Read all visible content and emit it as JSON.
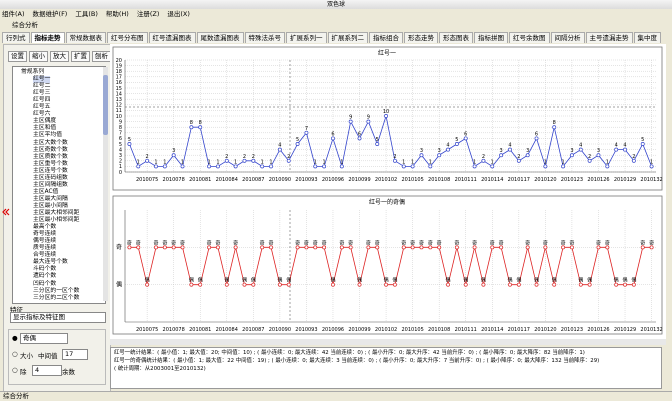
{
  "window_title": "双色球",
  "menu": [
    "组件(A)",
    "数据维护(F)",
    "工具(B)",
    "帮助(H)",
    "注册(Z)",
    "退出(X)"
  ],
  "toolbar": [
    "综合分析"
  ],
  "tabs": [
    "行列式",
    "指标走势",
    "常规数据表",
    "红号分布图",
    "红号遗漏图表",
    "尾数遗漏图表",
    "特殊法杀号",
    "扩展系列一",
    "扩展系列二",
    "指标组合",
    "形态走势",
    "形态图表",
    "指标拼图",
    "红号余数图",
    "间隔分析",
    "主号遗漏走势",
    "集中度"
  ],
  "active_tab": 1,
  "sidebar": {
    "buttons": [
      "设置",
      "缩小",
      "放大",
      "扩置",
      "刨析"
    ],
    "tree": [
      "常规系列",
      "红号一",
      "红号二",
      "红号三",
      "红号四",
      "红号五",
      "红号六",
      "主区偶度",
      "主区和值",
      "主区平均值",
      "主区大数个数",
      "主区奇数个数",
      "主区质数个数",
      "主区重号个数",
      "主区连号个数",
      "主区连码组数",
      "主区间隔组数",
      "主区AC值",
      "主区最大间隔",
      "主区最小间隔",
      "主区最大相邻间距",
      "主区最小相邻间距",
      "最高个数",
      "奇号连续",
      "偶号连续",
      "质号连续",
      "合号连续",
      "最大连号个数",
      "斗码个数",
      "遗码个数",
      "凹码个数",
      "三分区的一区个数",
      "三分区的二区个数"
    ],
    "feature_label": "特征",
    "feature_select": "显示指标及特征图",
    "option_parity": "奇偶",
    "option_size": "大小",
    "middle_label": "中间值",
    "middle_value": "17",
    "divide_label": "除",
    "divide_value": "4",
    "remainder_label": "余数"
  },
  "stats": [
    "红号一统计结果：( 最小值：1; 最大值：20; 中间值：10) ; ( 最小连续：0; 最大连续：42 当前连续：0) ; ( 最小升序：0; 最大升序：42 当前升序：0) ; ( 最小降序：0; 最大降序：82 当前降序：1)",
    "红号一的奇偶统计结果：( 最小值：1; 最大值：22 中间值：19) ; ( 最小连续：0; 最大连续：3 当前连续：0) ; ( 最小升序：0; 最大升序：7 当前升序：0) ; ( 最小降序：0; 最大降序：132 当前降序：29)",
    "( 统计周期：从2003001至2010132)"
  ],
  "status": "综合分析",
  "chart_data": [
    {
      "type": "line",
      "title": "红号一",
      "color": "#3344cc",
      "grid": true,
      "categories": [
        null,
        null,
        "2010075",
        null,
        null,
        "2010078",
        null,
        null,
        "2010081",
        null,
        null,
        "2010084",
        null,
        null,
        "2010087",
        null,
        null,
        "2010090",
        null,
        null,
        "2010093",
        null,
        null,
        "2010096",
        null,
        null,
        "2010099",
        null,
        null,
        "2010102",
        null,
        null,
        "2010105",
        null,
        null,
        "2010108",
        null,
        null,
        "2010111",
        null,
        null,
        "2010114",
        null,
        null,
        "2010117",
        null,
        null,
        "2010120",
        null,
        null,
        "2010123",
        null,
        null,
        "2010126",
        null,
        null,
        "2010129",
        null,
        null,
        "2010132"
      ],
      "values": [
        5,
        1,
        2,
        1,
        1,
        3,
        1,
        8,
        8,
        1,
        1,
        2,
        1,
        2,
        2,
        1,
        1,
        4,
        2,
        5,
        7,
        1,
        1,
        6,
        1,
        9,
        6,
        9,
        5,
        10,
        2,
        1,
        1,
        3,
        1,
        3,
        4,
        5,
        6,
        1,
        2,
        1,
        3,
        4,
        2,
        3,
        6,
        1,
        8,
        1,
        3,
        4,
        2,
        3,
        1,
        4,
        4,
        2,
        5,
        1
      ],
      "ylim": [
        0,
        20
      ],
      "yticks": [
        0,
        1,
        2,
        3,
        4,
        5,
        6,
        7,
        8,
        9,
        10,
        11,
        12,
        13,
        14,
        15,
        16,
        17,
        18,
        19,
        20
      ]
    },
    {
      "type": "line",
      "title": "红号一的奇偶",
      "color": "#dd2222",
      "grid": true,
      "categories": [
        null,
        null,
        "2010075",
        null,
        null,
        "2010078",
        null,
        null,
        "2010081",
        null,
        null,
        "2010084",
        null,
        null,
        "2010087",
        null,
        null,
        "2010090",
        null,
        null,
        "2010093",
        null,
        null,
        "2010096",
        null,
        null,
        "2010099",
        null,
        null,
        "2010102",
        null,
        null,
        "2010105",
        null,
        null,
        "2010108",
        null,
        null,
        "2010111",
        null,
        null,
        "2010114",
        null,
        null,
        "2010117",
        null,
        null,
        "2010120",
        null,
        null,
        "2010123",
        null,
        null,
        "2010126",
        null,
        null,
        "2010129",
        null,
        null,
        "2010132"
      ],
      "values": [
        1,
        1,
        0,
        1,
        1,
        1,
        1,
        0,
        0,
        1,
        1,
        0,
        1,
        0,
        0,
        1,
        1,
        0,
        0,
        1,
        1,
        1,
        1,
        0,
        1,
        1,
        0,
        1,
        1,
        0,
        0,
        1,
        1,
        1,
        1,
        1,
        0,
        1,
        0,
        1,
        0,
        1,
        1,
        0,
        0,
        1,
        0,
        1,
        0,
        1,
        1,
        0,
        0,
        1,
        1,
        0,
        0,
        0,
        1,
        1
      ],
      "value_labels": [
        "奇",
        "奇",
        "偶",
        "奇",
        "奇",
        "奇",
        "奇",
        "偶",
        "偶",
        "奇",
        "奇",
        "偶",
        "奇",
        "偶",
        "偶",
        "奇",
        "奇",
        "偶",
        "偶",
        "奇",
        "奇",
        "奇",
        "奇",
        "偶",
        "奇",
        "奇",
        "偶",
        "奇",
        "奇",
        "偶",
        "偶",
        "奇",
        "奇",
        "奇",
        "奇",
        "奇",
        "偶",
        "奇",
        "偶",
        "奇",
        "偶",
        "奇",
        "奇",
        "偶",
        "偶",
        "奇",
        "偶",
        "奇",
        "偶",
        "奇",
        "奇",
        "偶",
        "偶",
        "奇",
        "奇",
        "偶",
        "偶",
        "偶",
        "奇",
        "奇"
      ],
      "ylim": [
        -1,
        2
      ],
      "yticks": [
        {
          "value": 1,
          "label": "奇"
        },
        {
          "value": 0,
          "label": "偶"
        }
      ]
    }
  ]
}
